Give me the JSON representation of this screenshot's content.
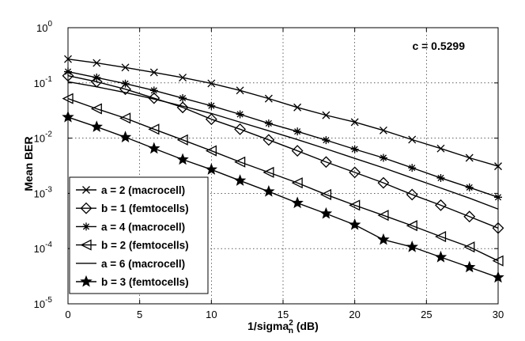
{
  "chart_data": {
    "type": "line",
    "title": "",
    "xlabel": "1/sigma",
    "xlabel_sub": "n",
    "xlabel_sup": "2",
    "xlabel_unit": " (dB)",
    "ylabel": "Mean BER",
    "yscale": "log",
    "xlim": [
      0,
      30
    ],
    "ylim": [
      1e-05,
      1
    ],
    "x_ticks": [
      0,
      5,
      10,
      15,
      20,
      25,
      30
    ],
    "y_ticks": [
      {
        "value": 1,
        "base": "10",
        "exp": "0"
      },
      {
        "value": 0.1,
        "base": "10",
        "exp": "-1"
      },
      {
        "value": 0.01,
        "base": "10",
        "exp": "-2"
      },
      {
        "value": 0.001,
        "base": "10",
        "exp": "-3"
      },
      {
        "value": 0.0001,
        "base": "10",
        "exp": "-4"
      },
      {
        "value": 1e-05,
        "base": "10",
        "exp": "-5"
      }
    ],
    "grid": true,
    "annotation": "c = 0.5299",
    "legend_position": "bottom-left",
    "x": [
      0,
      2,
      4,
      6,
      8,
      10,
      12,
      14,
      16,
      18,
      20,
      22,
      24,
      26,
      28,
      30
    ],
    "series": [
      {
        "name": "a = 2 (macrocell)",
        "marker": "x",
        "values": [
          0.27,
          0.23,
          0.19,
          0.155,
          0.125,
          0.098,
          0.073,
          0.052,
          0.036,
          0.026,
          0.0195,
          0.0138,
          0.0094,
          0.0065,
          0.0044,
          0.0031
        ]
      },
      {
        "name": "b = 1 (femtocells)",
        "marker": "diamond",
        "values": [
          0.135,
          0.105,
          0.077,
          0.053,
          0.036,
          0.022,
          0.0145,
          0.0093,
          0.0059,
          0.0037,
          0.0024,
          0.00155,
          0.00095,
          0.00061,
          0.00038,
          0.000235
        ]
      },
      {
        "name": "a = 4 (macrocell)",
        "marker": "asterisk",
        "values": [
          0.16,
          0.125,
          0.097,
          0.073,
          0.053,
          0.0385,
          0.027,
          0.0185,
          0.0132,
          0.0092,
          0.0063,
          0.0044,
          0.0029,
          0.0019,
          0.00128,
          0.00085
        ]
      },
      {
        "name": "b = 2 (femtocells)",
        "marker": "triangle-left",
        "values": [
          0.052,
          0.034,
          0.023,
          0.0145,
          0.0093,
          0.0059,
          0.0037,
          0.0024,
          0.00155,
          0.00095,
          0.00061,
          0.0004,
          0.00026,
          0.000165,
          0.000107,
          6e-05
        ]
      },
      {
        "name": "a = 6 (macrocell)",
        "marker": "none",
        "values": [
          0.105,
          0.085,
          0.067,
          0.051,
          0.038,
          0.028,
          0.0195,
          0.0136,
          0.0094,
          0.0064,
          0.0043,
          0.0029,
          0.0019,
          0.00125,
          0.00082,
          0.00052
        ]
      },
      {
        "name": "b = 3 (femtocells)",
        "marker": "star",
        "values": [
          0.024,
          0.016,
          0.0104,
          0.0065,
          0.0041,
          0.0027,
          0.0017,
          0.00108,
          0.00067,
          0.00043,
          0.00027,
          0.000145,
          0.000107,
          7e-05,
          4.6e-05,
          3e-05
        ]
      }
    ]
  }
}
